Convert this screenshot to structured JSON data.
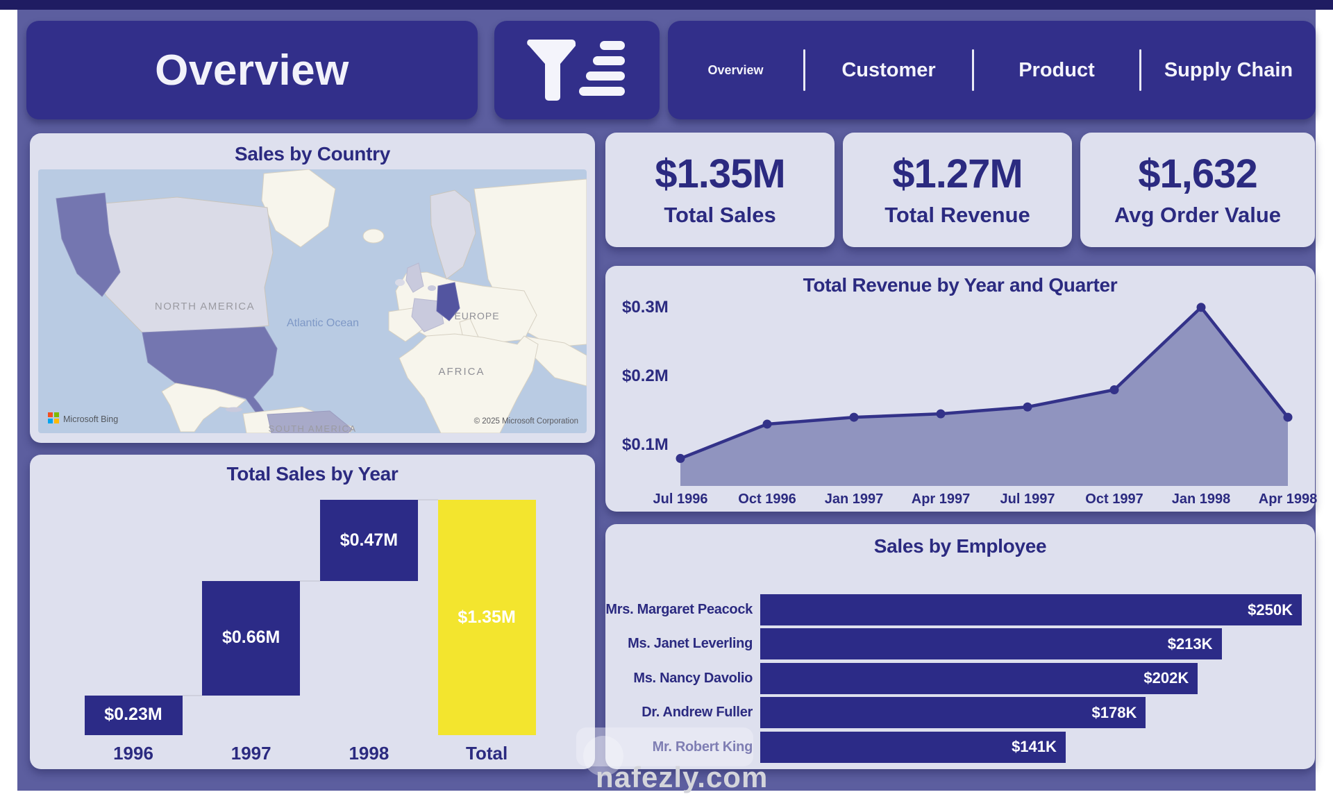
{
  "page": {
    "title": "Overview"
  },
  "header": {
    "filter_icon": "filter-funnel-icon"
  },
  "nav": {
    "tabs": [
      {
        "label": "Overview",
        "active": true
      },
      {
        "label": "Customer",
        "active": false
      },
      {
        "label": "Product",
        "active": false
      },
      {
        "label": "Supply Chain",
        "active": false
      }
    ]
  },
  "kpis": [
    {
      "value": "$1.35M",
      "label": "Total Sales"
    },
    {
      "value": "$1.27M",
      "label": "Total Revenue"
    },
    {
      "value": "$1,632",
      "label": "Avg Order Value"
    }
  ],
  "map_card": {
    "title": "Sales by Country",
    "labels": {
      "north_america": "NORTH AMERICA",
      "europe": "EUROPE",
      "africa": "AFRICA",
      "atlantic": "Atlantic Ocean",
      "south_america": "SOUTH AMERICA"
    },
    "provider": "Microsoft Bing",
    "attribution": "© 2025 Microsoft Corporation",
    "microsoft_logo_colors": [
      "#f25022",
      "#7fba00",
      "#00a4ef",
      "#ffb900"
    ]
  },
  "theme": {
    "canvas": "#5c5e9f",
    "card": "#dee0ee",
    "header_indigo": "#322f8a",
    "navy_text": "#2b2a80",
    "bar_indigo": "#2c2b87",
    "total_yellow": "#f3e52e",
    "line": "#333289",
    "area_fill": "#9094bf",
    "connector_gray": "#cfd0dd",
    "ocean": "#b9cbe3",
    "land": "#f7f5ec"
  },
  "watermark": {
    "text": "nafezly.com"
  },
  "chart_data": [
    {
      "type": "bar",
      "subtype": "waterfall",
      "title": "Total Sales by Year",
      "categories": [
        "1996",
        "1997",
        "1998",
        "Total"
      ],
      "values": [
        0.23,
        0.66,
        0.47,
        1.35
      ],
      "is_total": [
        false,
        false,
        false,
        true
      ],
      "labels": [
        "$0.23M",
        "$0.66M",
        "$0.47M",
        "$1.35M"
      ],
      "unit": "M USD",
      "increase_color": "#2c2b87",
      "total_color": "#f3e52e"
    },
    {
      "type": "area",
      "title": "Total Revenue by Year and Quarter",
      "x": [
        "Jul 1996",
        "Oct 1996",
        "Jan 1997",
        "Apr 1997",
        "Jul 1997",
        "Oct 1997",
        "Jan 1998",
        "Apr 1998"
      ],
      "values": [
        0.08,
        0.13,
        0.14,
        0.145,
        0.155,
        0.18,
        0.3,
        0.14
      ],
      "unit": "M USD",
      "ylim": [
        0.04,
        0.32
      ],
      "yticks": [
        {
          "v": 0.1,
          "label": "$0.1M"
        },
        {
          "v": 0.2,
          "label": "$0.2M"
        },
        {
          "v": 0.3,
          "label": "$0.3M"
        }
      ],
      "grid": false,
      "legend": "none"
    },
    {
      "type": "bar",
      "orientation": "horizontal",
      "title": "Sales by Employee",
      "categories": [
        "Mrs. Margaret Peacock",
        "Ms. Janet Leverling",
        "Ms. Nancy Davolio",
        "Dr. Andrew Fuller",
        "Mr. Robert King"
      ],
      "values": [
        250,
        213,
        202,
        178,
        141
      ],
      "labels": [
        "$250K",
        "$213K",
        "$202K",
        "$178K",
        "$141K"
      ],
      "unit": "K USD",
      "xlim": [
        0,
        250
      ]
    }
  ]
}
